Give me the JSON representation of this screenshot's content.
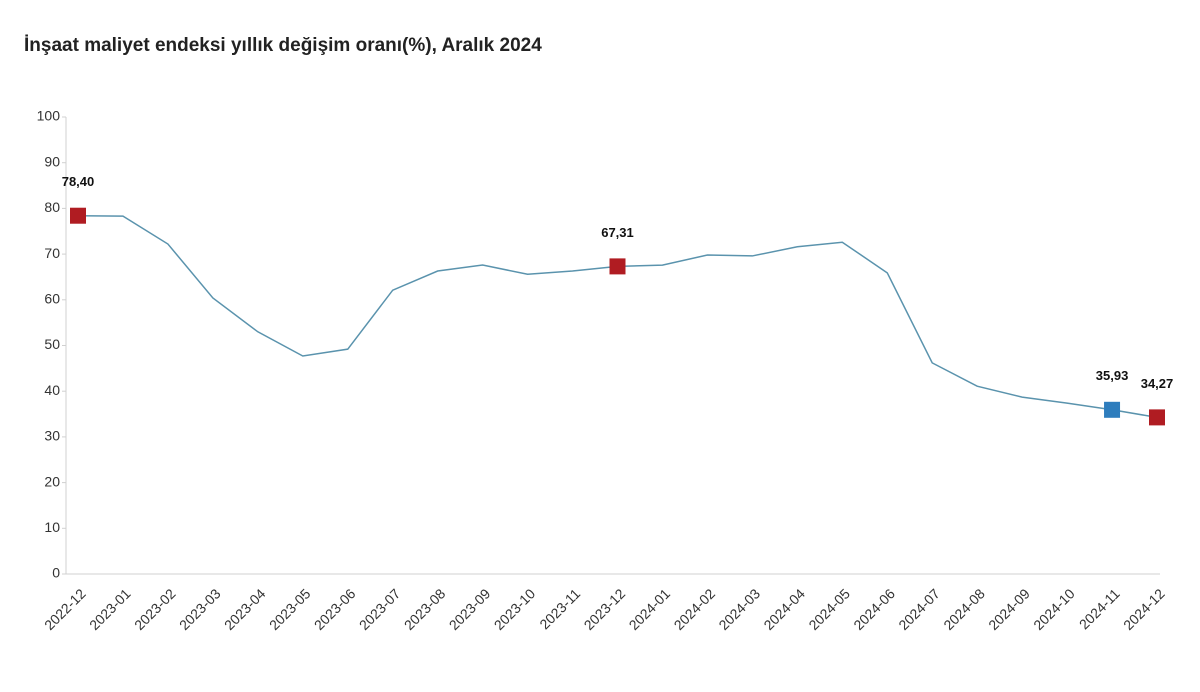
{
  "chart_data": {
    "type": "line",
    "title": "İnşaat maliyet endeksi yıllık değişim oranı(%), Aralık 2024",
    "categories": [
      "2022-12",
      "2023-01",
      "2023-02",
      "2023-03",
      "2023-04",
      "2023-05",
      "2023-06",
      "2023-07",
      "2023-08",
      "2023-09",
      "2023-10",
      "2023-11",
      "2023-12",
      "2024-01",
      "2024-02",
      "2024-03",
      "2024-04",
      "2024-05",
      "2024-06",
      "2024-07",
      "2024-08",
      "2024-09",
      "2024-10",
      "2024-11",
      "2024-12"
    ],
    "values": [
      78.4,
      78.3,
      72.2,
      60.4,
      53.0,
      47.7,
      49.2,
      62.1,
      66.3,
      67.6,
      65.6,
      66.3,
      67.31,
      67.6,
      69.8,
      69.6,
      71.6,
      72.6,
      65.9,
      46.2,
      41.1,
      38.7,
      37.4,
      35.93,
      34.27
    ],
    "value_labels": [
      "78,40",
      null,
      null,
      null,
      null,
      null,
      null,
      null,
      null,
      null,
      null,
      null,
      "67,31",
      null,
      null,
      null,
      null,
      null,
      null,
      null,
      null,
      null,
      null,
      "35,93",
      "34,27"
    ],
    "marker_colors": [
      "#b01c22",
      null,
      null,
      null,
      null,
      null,
      null,
      null,
      null,
      null,
      null,
      null,
      "#b01c22",
      null,
      null,
      null,
      null,
      null,
      null,
      null,
      null,
      null,
      null,
      "#2e7dbd",
      "#b01c22"
    ],
    "color": "#5a93ad",
    "ylim": [
      0,
      100
    ],
    "yticks": [
      0,
      10,
      20,
      30,
      40,
      50,
      60,
      70,
      80,
      90,
      100
    ],
    "grid": false
  }
}
